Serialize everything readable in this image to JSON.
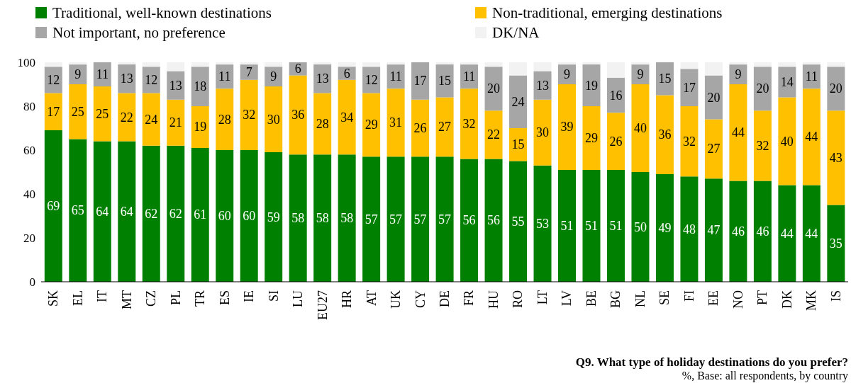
{
  "chart_data": {
    "type": "bar",
    "stacked": true,
    "title": "Q9. What type of holiday destinations do you prefer?",
    "subtitle": "%, Base: all respondents, by country",
    "categories": [
      "SK",
      "EL",
      "IT",
      "MT",
      "CZ",
      "PL",
      "TR",
      "ES",
      "IE",
      "SI",
      "LU",
      "EU27",
      "HR",
      "AT",
      "UK",
      "CY",
      "DE",
      "FR",
      "HU",
      "RO",
      "LT",
      "LV",
      "BE",
      "BG",
      "NL",
      "SE",
      "FI",
      "EE",
      "NO",
      "PT",
      "DK",
      "MK",
      "IS"
    ],
    "series": [
      {
        "name": "Traditional, well-known destinations",
        "color": "#008000",
        "values": [
          69,
          65,
          64,
          64,
          62,
          62,
          61,
          60,
          60,
          59,
          58,
          58,
          58,
          57,
          57,
          57,
          57,
          56,
          56,
          55,
          53,
          51,
          51,
          51,
          50,
          49,
          48,
          47,
          46,
          46,
          44,
          44,
          35
        ],
        "value_labels": [
          "69",
          "65",
          "64",
          "64",
          "62",
          "62",
          "61",
          "60",
          "60",
          "59",
          "58",
          "58",
          "58",
          "57",
          "57",
          "57",
          "57",
          "56",
          "56",
          "55",
          "53",
          "51",
          "51",
          "51",
          "50",
          "49",
          "48",
          "47",
          "46",
          "46",
          "44",
          "44",
          "35"
        ]
      },
      {
        "name": "Non-traditional, emerging destinations",
        "color": "#ffc000",
        "values": [
          17,
          25,
          25,
          22,
          24,
          21,
          19,
          28,
          32,
          30,
          36,
          28,
          34,
          29,
          31,
          26,
          27,
          32,
          22,
          15,
          30,
          39,
          29,
          26,
          40,
          36,
          32,
          27,
          44,
          32,
          40,
          44,
          43
        ],
        "value_labels": [
          "17",
          "25",
          "25",
          "22",
          "24",
          "21",
          "19",
          "28",
          "32",
          "30",
          "36",
          "28",
          "34",
          "29",
          "31",
          "26",
          "27",
          "32",
          "22",
          "15",
          "30",
          "39",
          "29",
          "26",
          "40",
          "36",
          "32",
          "27",
          "44",
          "32",
          "40",
          "44",
          "43"
        ]
      },
      {
        "name": "Not important, no preference",
        "color": "#a6a6a6",
        "values": [
          12,
          9,
          11,
          13,
          12,
          13,
          18,
          11,
          7,
          9,
          6,
          13,
          6,
          12,
          11,
          17,
          15,
          11,
          20,
          24,
          13,
          9,
          19,
          16,
          9,
          15,
          17,
          20,
          9,
          20,
          14,
          11,
          20
        ],
        "value_labels": [
          "12",
          "9",
          "11",
          "13",
          "12",
          "13",
          "18",
          "11",
          "7",
          "9",
          "6",
          "13",
          "6",
          "12",
          "11",
          "17",
          "15",
          "11",
          "20",
          "24",
          "13",
          "9",
          "19",
          "16",
          "9",
          "15",
          "17",
          "20",
          "9",
          "20",
          "14",
          "11",
          "20"
        ]
      },
      {
        "name": "DK/NA",
        "color": "#f2f2f2",
        "values": [
          2,
          1,
          0,
          1,
          2,
          4,
          2,
          1,
          1,
          2,
          0,
          1,
          2,
          2,
          1,
          0,
          1,
          1,
          2,
          6,
          4,
          1,
          1,
          7,
          1,
          0,
          3,
          6,
          1,
          2,
          2,
          1,
          2
        ]
      }
    ],
    "ylim": [
      0,
      100
    ],
    "yticks": [
      0,
      20,
      40,
      60,
      80,
      100
    ],
    "grid": false,
    "legend": "top"
  }
}
